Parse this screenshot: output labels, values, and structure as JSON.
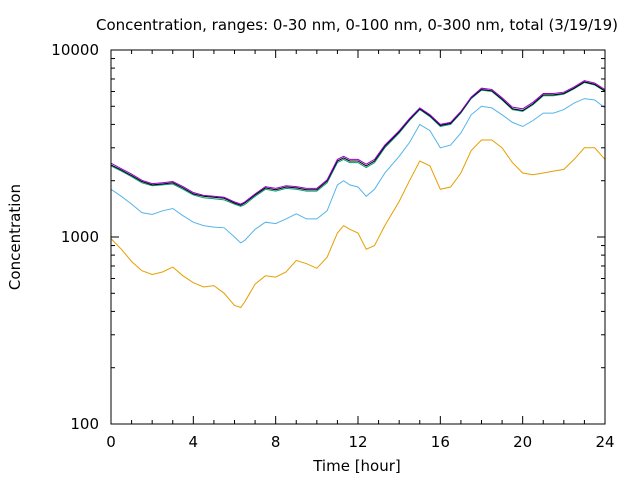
{
  "chart_data": {
    "type": "line",
    "title": "Concentration, ranges: 0-30 nm, 0-100 nm, 0-300 nm, total (3/19/19)",
    "xlabel": "Time [hour]",
    "ylabel": "Concentration",
    "xlim": [
      0,
      24
    ],
    "ylim": [
      100,
      10000
    ],
    "yscale": "log",
    "xticks": [
      0,
      4,
      8,
      12,
      16,
      20,
      24
    ],
    "xtick_labels": [
      "0",
      "4",
      "8",
      "12",
      "16",
      "20",
      "24"
    ],
    "yticks": [
      100,
      1000,
      10000
    ],
    "ytick_labels": [
      "100",
      "1000",
      "10000"
    ],
    "grid": false,
    "legend": "none",
    "series": [
      {
        "color": "#e69f00",
        "x": [
          0,
          0.5,
          1,
          1.5,
          2,
          2.5,
          3,
          3.5,
          4,
          4.5,
          5,
          5.5,
          6,
          6.3,
          6.5,
          7,
          7.5,
          8,
          8.5,
          9,
          9.5,
          10,
          10.5,
          11,
          11.3,
          11.6,
          12,
          12.4,
          12.8,
          13.3,
          14,
          14.5,
          15,
          15.5,
          16,
          16.5,
          17,
          17.5,
          18,
          18.5,
          19,
          19.5,
          20,
          20.5,
          21,
          21.5,
          22,
          22.5,
          23,
          23.5,
          24
        ],
        "y": [
          980,
          860,
          740,
          660,
          630,
          650,
          690,
          620,
          570,
          540,
          550,
          500,
          430,
          420,
          450,
          560,
          620,
          610,
          650,
          750,
          720,
          680,
          780,
          1050,
          1150,
          1100,
          1050,
          860,
          900,
          1150,
          1550,
          2000,
          2550,
          2400,
          1800,
          1850,
          2200,
          2900,
          3300,
          3300,
          3000,
          2500,
          2200,
          2150,
          2200,
          2250,
          2300,
          2600,
          3000,
          3000,
          2600
        ]
      },
      {
        "color": "#56b4e9",
        "x": [
          0,
          0.5,
          1,
          1.5,
          2,
          2.5,
          3,
          3.5,
          4,
          4.5,
          5,
          5.5,
          6,
          6.3,
          6.5,
          7,
          7.5,
          8,
          8.5,
          9,
          9.5,
          10,
          10.5,
          11,
          11.3,
          11.6,
          12,
          12.4,
          12.8,
          13.3,
          14,
          14.5,
          15,
          15.5,
          16,
          16.5,
          17,
          17.5,
          18,
          18.5,
          19,
          19.5,
          20,
          20.5,
          21,
          21.5,
          22,
          22.5,
          23,
          23.5,
          24
        ],
        "y": [
          1800,
          1650,
          1500,
          1350,
          1320,
          1380,
          1420,
          1300,
          1200,
          1150,
          1130,
          1120,
          1000,
          930,
          960,
          1100,
          1200,
          1180,
          1250,
          1330,
          1250,
          1250,
          1380,
          1900,
          2000,
          1900,
          1850,
          1650,
          1800,
          2200,
          2700,
          3200,
          4000,
          3700,
          3000,
          3100,
          3600,
          4500,
          5000,
          4900,
          4500,
          4100,
          3900,
          4200,
          4600,
          4600,
          4800,
          5200,
          5500,
          5400,
          4900
        ]
      },
      {
        "color": "#009e73",
        "x": [
          0,
          0.5,
          1,
          1.5,
          2,
          2.5,
          3,
          3.5,
          4,
          4.5,
          5,
          5.5,
          6,
          6.3,
          6.5,
          7,
          7.5,
          8,
          8.5,
          9,
          9.5,
          10,
          10.5,
          11,
          11.3,
          11.6,
          12,
          12.4,
          12.8,
          13.3,
          14,
          14.5,
          15,
          15.5,
          16,
          16.5,
          17,
          17.5,
          18,
          18.5,
          19,
          19.5,
          20,
          20.5,
          21,
          21.5,
          22,
          22.5,
          23,
          23.5,
          24
        ],
        "y": [
          2400,
          2250,
          2100,
          1950,
          1880,
          1900,
          1920,
          1800,
          1680,
          1620,
          1600,
          1580,
          1500,
          1460,
          1490,
          1650,
          1800,
          1760,
          1820,
          1800,
          1760,
          1760,
          1950,
          2500,
          2600,
          2500,
          2500,
          2350,
          2500,
          3000,
          3600,
          4200,
          4800,
          4400,
          3900,
          4000,
          4600,
          5500,
          6100,
          6000,
          5400,
          4800,
          4700,
          5100,
          5700,
          5700,
          5800,
          6200,
          6700,
          6500,
          6000
        ]
      },
      {
        "color": "#000000",
        "x": [
          0,
          0.5,
          1,
          1.5,
          2,
          2.5,
          3,
          3.5,
          4,
          4.5,
          5,
          5.5,
          6,
          6.3,
          6.5,
          7,
          7.5,
          8,
          8.5,
          9,
          9.5,
          10,
          10.5,
          11,
          11.3,
          11.6,
          12,
          12.4,
          12.8,
          13.3,
          14,
          14.5,
          15,
          15.5,
          16,
          16.5,
          17,
          17.5,
          18,
          18.5,
          19,
          19.5,
          20,
          20.5,
          21,
          21.5,
          22,
          22.5,
          23,
          23.5,
          24
        ],
        "y": [
          2430,
          2280,
          2130,
          1980,
          1900,
          1920,
          1950,
          1830,
          1700,
          1650,
          1630,
          1610,
          1520,
          1480,
          1520,
          1680,
          1830,
          1790,
          1850,
          1830,
          1790,
          1790,
          1990,
          2550,
          2650,
          2550,
          2550,
          2400,
          2550,
          3050,
          3650,
          4250,
          4850,
          4450,
          3950,
          4050,
          4650,
          5550,
          6150,
          6050,
          5450,
          4850,
          4750,
          5150,
          5750,
          5750,
          5850,
          6250,
          6750,
          6550,
          6050
        ]
      },
      {
        "color": "#9400d3",
        "x": [
          0,
          0.5,
          1,
          1.5,
          2,
          2.5,
          3,
          3.5,
          4,
          4.5,
          5,
          5.5,
          6,
          6.3,
          6.5,
          7,
          7.5,
          8,
          8.5,
          9,
          9.5,
          10,
          10.5,
          11,
          11.3,
          11.6,
          12,
          12.4,
          12.8,
          13.3,
          14,
          14.5,
          15,
          15.5,
          16,
          16.5,
          17,
          17.5,
          18,
          18.5,
          19,
          19.5,
          20,
          20.5,
          21,
          21.5,
          22,
          22.5,
          23,
          23.5,
          24
        ],
        "y": [
          2480,
          2320,
          2170,
          2010,
          1930,
          1950,
          1980,
          1860,
          1730,
          1670,
          1650,
          1630,
          1540,
          1500,
          1540,
          1700,
          1860,
          1820,
          1880,
          1860,
          1820,
          1820,
          2020,
          2600,
          2700,
          2600,
          2600,
          2450,
          2600,
          3100,
          3700,
          4300,
          4900,
          4500,
          4000,
          4100,
          4700,
          5600,
          6250,
          6150,
          5550,
          4950,
          4850,
          5250,
          5850,
          5850,
          5950,
          6350,
          6850,
          6650,
          6150
        ]
      }
    ]
  }
}
